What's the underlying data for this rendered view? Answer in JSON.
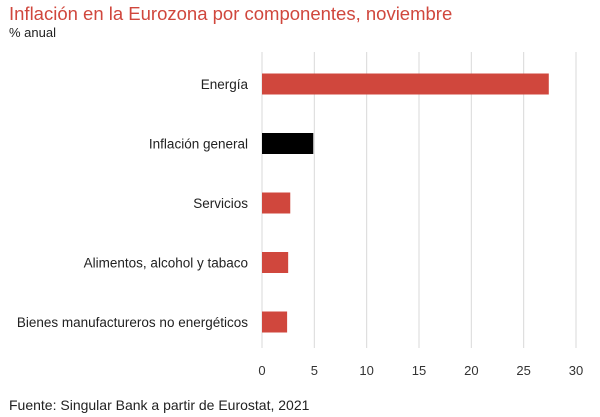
{
  "chart_data": {
    "type": "bar",
    "orientation": "horizontal",
    "title": "Inflación en la Eurozona por componentes, noviembre",
    "subtitle": "% anual",
    "categories": [
      "Energía",
      "Inflación general",
      "Servicios",
      "Alimentos, alcohol y tabaco",
      "Bienes manufactureros no energéticos"
    ],
    "values": [
      27.4,
      4.9,
      2.7,
      2.5,
      2.4
    ],
    "bar_colors": [
      "#d0473d",
      "#000000",
      "#d0473d",
      "#d0473d",
      "#d0473d"
    ],
    "xlim": [
      0,
      30
    ],
    "xticks": [
      0,
      5,
      10,
      15,
      20,
      25,
      30
    ],
    "grid": true,
    "source": "Fuente: Singular Bank a partir de Eurostat, 2021"
  }
}
